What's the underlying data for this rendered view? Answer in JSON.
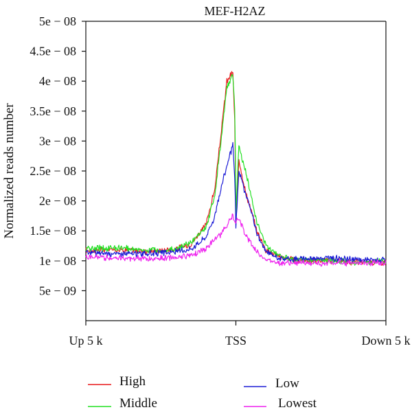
{
  "chart_data": {
    "type": "line",
    "title": "MEF-H2AZ",
    "xlabel": "",
    "ylabel": "Normalized reads number",
    "ylim": [
      0,
      5e-08
    ],
    "xlim": [
      -5000,
      5000
    ],
    "y_ticks": [
      {
        "value": 5e-09,
        "label": "5e − 09"
      },
      {
        "value": 1e-08,
        "label": "1e − 08"
      },
      {
        "value": 1.5e-08,
        "label": "1.5e − 08"
      },
      {
        "value": 2e-08,
        "label": "2e − 08"
      },
      {
        "value": 2.5e-08,
        "label": "2.5e − 08"
      },
      {
        "value": 3e-08,
        "label": "3e − 08"
      },
      {
        "value": 3.5e-08,
        "label": "3.5e − 08"
      },
      {
        "value": 4e-08,
        "label": "4e − 08"
      },
      {
        "value": 4.5e-08,
        "label": "4.5e − 08"
      },
      {
        "value": 5e-08,
        "label": "5e − 08"
      }
    ],
    "x_ticks": [
      {
        "value": -5000,
        "label": "Up 5 k"
      },
      {
        "value": 0,
        "label": "TSS"
      },
      {
        "value": 5000,
        "label": "Down 5 k"
      }
    ],
    "legend": {
      "placement": "bottom"
    },
    "series": [
      {
        "name": "High",
        "color": "#e8191c",
        "x": [
          -5000,
          -4000,
          -3000,
          -2500,
          -2000,
          -1500,
          -1000,
          -700,
          -500,
          -300,
          -100,
          -30,
          0,
          100,
          200,
          300,
          500,
          700,
          1000,
          1500,
          2000,
          3000,
          4000,
          5000
        ],
        "y": [
          1.17e-08,
          1.19e-08,
          1.16e-08,
          1.17e-08,
          1.2e-08,
          1.28e-08,
          1.6e-08,
          2.2e-08,
          3.1e-08,
          4e-08,
          4.15e-08,
          3.2e-08,
          1.6e-08,
          2.72e-08,
          2.45e-08,
          2.2e-08,
          1.85e-08,
          1.5e-08,
          1.18e-08,
          1.06e-08,
          1.01e-08,
          1e-08,
          9.8e-09,
          9.8e-09
        ]
      },
      {
        "name": "Middle",
        "color": "#22e022",
        "x": [
          -5000,
          -4000,
          -3000,
          -2500,
          -2000,
          -1500,
          -1000,
          -700,
          -500,
          -300,
          -100,
          -30,
          0,
          100,
          200,
          300,
          500,
          700,
          1000,
          1500,
          2000,
          3000,
          4000,
          5000
        ],
        "y": [
          1.2e-08,
          1.22e-08,
          1.18e-08,
          1.17e-08,
          1.2e-08,
          1.3e-08,
          1.55e-08,
          2.1e-08,
          3e-08,
          3.9e-08,
          4.1e-08,
          3.5e-08,
          1.75e-08,
          2.93e-08,
          2.7e-08,
          2.55e-08,
          2.1e-08,
          1.65e-08,
          1.25e-08,
          1.08e-08,
          1.02e-08,
          1e-08,
          9.8e-09,
          9.8e-09
        ]
      },
      {
        "name": "Low",
        "color": "#1a1ad6",
        "x": [
          -5000,
          -4000,
          -3000,
          -2500,
          -2000,
          -1500,
          -1000,
          -700,
          -500,
          -300,
          -100,
          -30,
          0,
          100,
          200,
          300,
          500,
          700,
          1000,
          1500,
          2000,
          3000,
          4000,
          5000
        ],
        "y": [
          1.14e-08,
          1.12e-08,
          1.12e-08,
          1.13e-08,
          1.15e-08,
          1.2e-08,
          1.4e-08,
          1.75e-08,
          2.2e-08,
          2.6e-08,
          2.92e-08,
          2.3e-08,
          1.55e-08,
          2.48e-08,
          2.35e-08,
          2.15e-08,
          1.85e-08,
          1.45e-08,
          1.15e-08,
          1.03e-08,
          1.03e-08,
          1.05e-08,
          1.02e-08,
          1.01e-08
        ]
      },
      {
        "name": "Lowest",
        "color": "#ee22ee",
        "x": [
          -5000,
          -4000,
          -3000,
          -2500,
          -2000,
          -1500,
          -1000,
          -700,
          -500,
          -300,
          -100,
          -30,
          0,
          100,
          200,
          300,
          500,
          700,
          1000,
          1500,
          2000,
          3000,
          4000,
          5000
        ],
        "y": [
          1.06e-08,
          1.05e-08,
          1.03e-08,
          1.04e-08,
          1.06e-08,
          1.1e-08,
          1.2e-08,
          1.35e-08,
          1.45e-08,
          1.6e-08,
          1.75e-08,
          1.6e-08,
          1.65e-08,
          1.7e-08,
          1.6e-08,
          1.45e-08,
          1.3e-08,
          1.15e-08,
          1.02e-08,
          9.7e-09,
          9.6e-09,
          9.6e-09,
          9.7e-09,
          9.7e-09
        ]
      }
    ]
  }
}
